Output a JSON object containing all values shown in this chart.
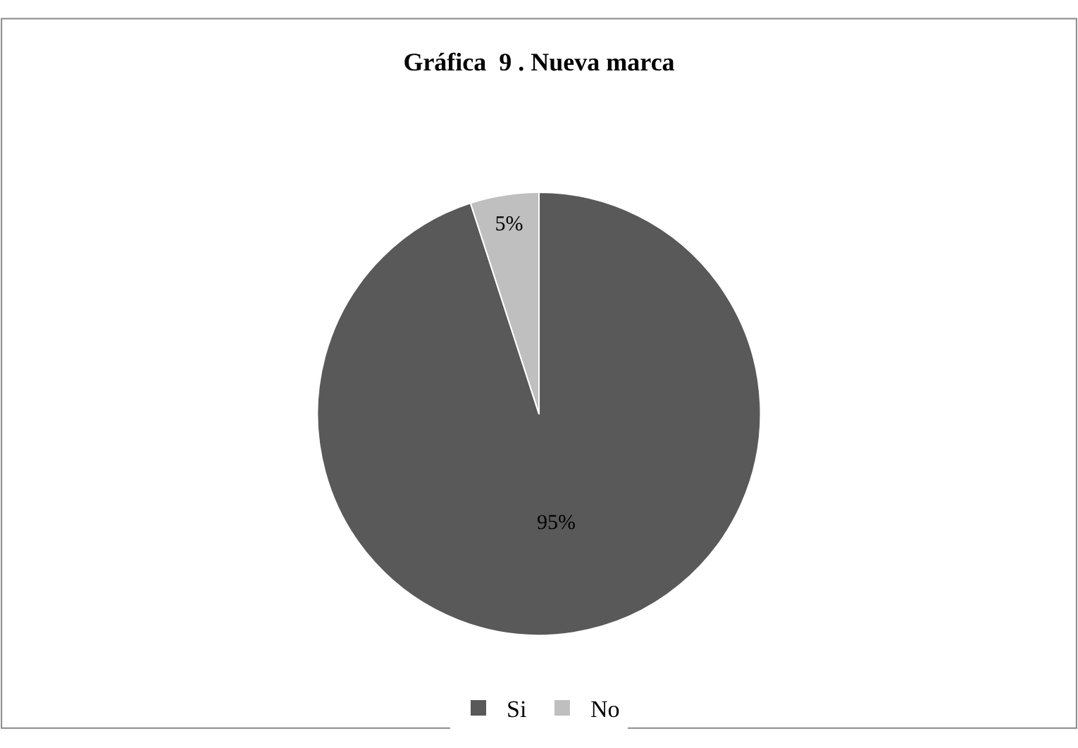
{
  "chart_data": {
    "type": "pie",
    "title": "Gráfica  9 . Nueva marca",
    "categories": [
      "Si",
      "No"
    ],
    "values": [
      95,
      5
    ],
    "value_labels": [
      "95%",
      "5%"
    ],
    "colors": [
      "#595959",
      "#bfbfbf"
    ],
    "legend": "bottom"
  }
}
